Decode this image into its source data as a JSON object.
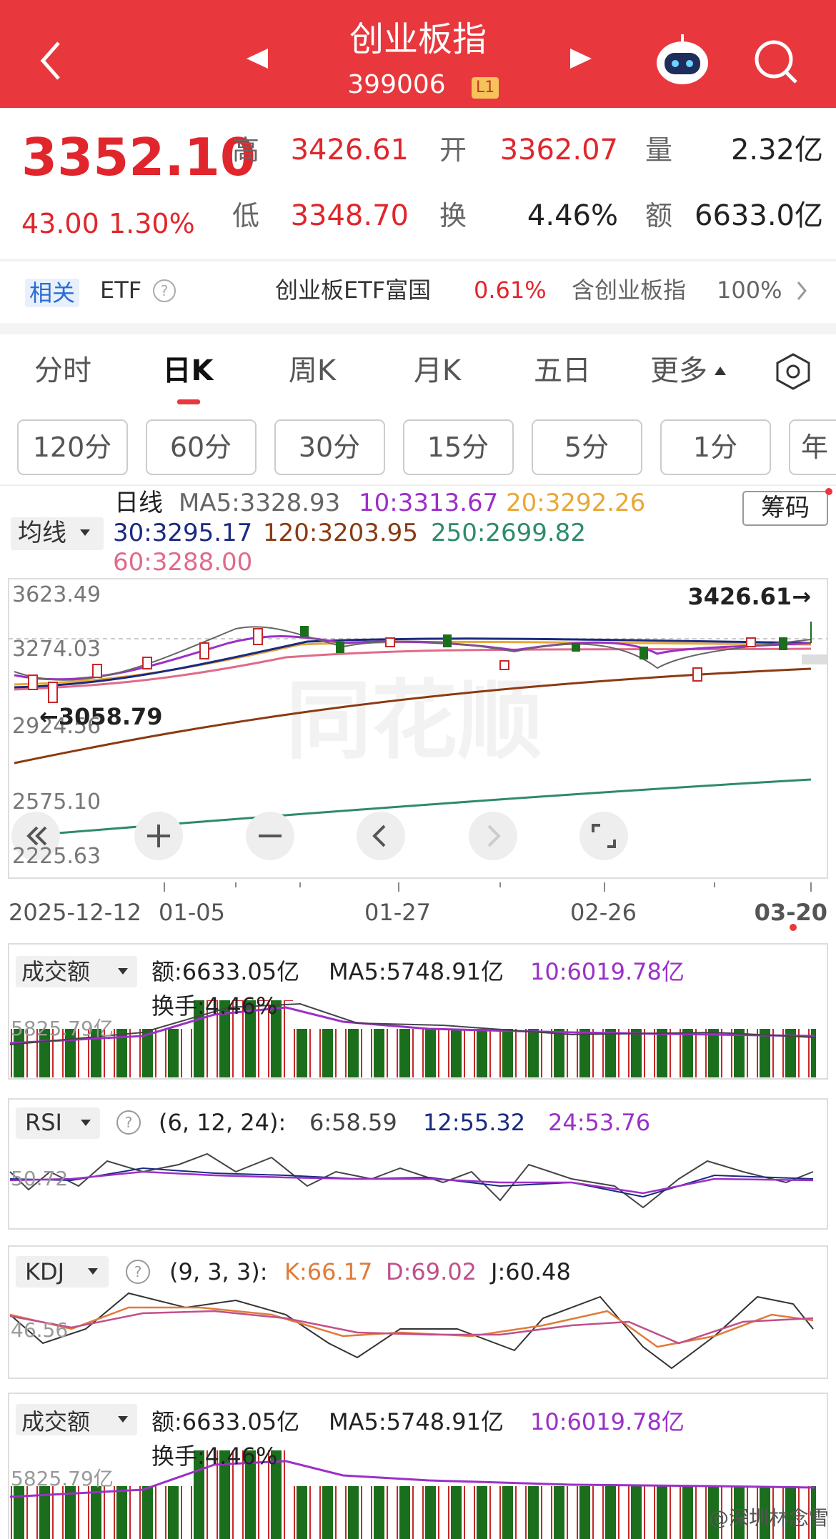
{
  "header": {
    "title": "创业板指",
    "code": "399006",
    "badge": "L1"
  },
  "quote": {
    "price": "3352.10",
    "change": "43.00",
    "change_pct": "1.30%",
    "stats": [
      {
        "label": "高",
        "value": "3426.61"
      },
      {
        "label": "开",
        "value": "3362.07"
      },
      {
        "label": "量",
        "value": "2.32亿"
      },
      {
        "label": "低",
        "value": "3348.70"
      },
      {
        "label": "换",
        "value": "4.46%"
      },
      {
        "label": "额",
        "value": "6633.0亿"
      }
    ]
  },
  "etf_row": {
    "tag": "相关",
    "label": "ETF",
    "fund_name": "创业板ETF富国",
    "fund_change": "0.61%",
    "holding_label": "含创业板指",
    "holding_pct": "100%"
  },
  "tabs": [
    "分时",
    "日K",
    "周K",
    "月K",
    "五日",
    "更多"
  ],
  "intervals": [
    "120分",
    "60分",
    "30分",
    "15分",
    "5分",
    "1分",
    "年"
  ],
  "ma_legend": {
    "selector": "均线",
    "period": "日线",
    "chips_button": "筹码",
    "items": [
      "MA5:3328.93",
      "10:3313.67",
      "20:3292.26",
      "30:3295.17",
      "120:3203.95",
      "250:2699.82",
      "60:3288.00"
    ]
  },
  "price_chart": {
    "y_labels": [
      "3623.49",
      "3274.03",
      "2924.56",
      "2575.10",
      "2225.63"
    ],
    "high_marker": "3426.61→",
    "low_marker": "←3058.79",
    "dates": [
      "2025-12-12",
      "01-05",
      "01-27",
      "02-26",
      "03-20"
    ]
  },
  "indicator_panels": [
    {
      "selector": "成交额",
      "readouts": [
        "额:6633.05亿",
        "MA5:5748.91亿",
        "10:6019.78亿"
      ],
      "turnover": "换手:4.46%",
      "axis_label": "5825.79亿"
    },
    {
      "selector": "RSI",
      "params": "(6, 12, 24):",
      "readouts": [
        "6:58.59",
        "12:55.32",
        "24:53.76"
      ],
      "axis_label": "50.72"
    },
    {
      "selector": "KDJ",
      "params": "(9, 3, 3):",
      "readouts": [
        "K:66.17",
        "D:69.02",
        "J:60.48"
      ],
      "axis_label": "46.56"
    },
    {
      "selector": "成交额",
      "readouts": [
        "额:6633.05亿",
        "MA5:5748.91亿",
        "10:6019.78亿"
      ],
      "turnover": "换手:4.46%",
      "axis_label": "5825.79亿"
    }
  ],
  "watermark": "@深圳林念雪"
}
